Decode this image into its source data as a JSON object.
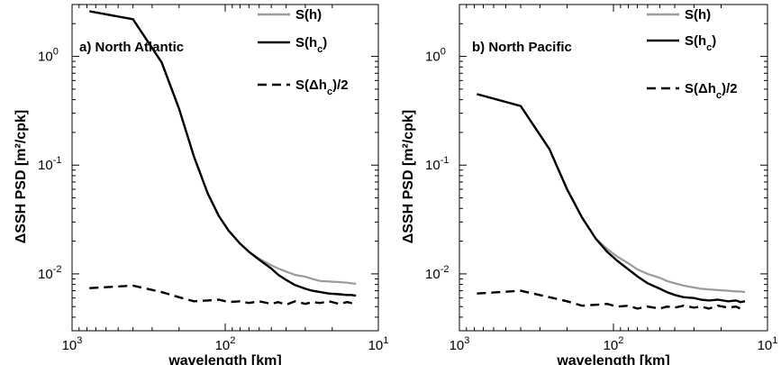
{
  "chart_data": [
    {
      "type": "line",
      "title": "a) North Atlantic",
      "xlabel": "wavelength [km]",
      "ylabel": "ΔSSH PSD [m²/cpk]",
      "x_scale": "log",
      "y_scale": "log",
      "x_reversed": true,
      "xlim": [
        1000,
        10
      ],
      "ylim": [
        0.003,
        3
      ],
      "x_ticks": [
        1000,
        100,
        10
      ],
      "x_tick_labels": [
        {
          "base": "10",
          "exp": "3"
        },
        {
          "base": "10",
          "exp": "2"
        },
        {
          "base": "10",
          "exp": "1"
        }
      ],
      "y_ticks": [
        0.01,
        0.1,
        1
      ],
      "y_tick_labels": [
        {
          "base": "10",
          "exp": "-2"
        },
        {
          "base": "10",
          "exp": "-1"
        },
        {
          "base": "10",
          "exp": "0"
        }
      ],
      "legend": {
        "placement": "top-right"
      },
      "series": [
        {
          "name": "S(h)",
          "name_parts": {
            "base": "S(h)",
            "sub": ""
          },
          "color": "#9a9a9a",
          "dash": "none",
          "x": [
            770,
            400,
            260,
            200,
            160,
            130,
            110,
            95,
            80,
            70,
            60,
            50,
            45,
            40,
            35,
            30,
            27,
            24,
            21,
            18,
            16,
            15,
            14
          ],
          "y": [
            2.6,
            2.2,
            0.88,
            0.33,
            0.12,
            0.055,
            0.034,
            0.025,
            0.019,
            0.016,
            0.0138,
            0.012,
            0.0112,
            0.0105,
            0.0098,
            0.0094,
            0.009,
            0.0086,
            0.0085,
            0.0084,
            0.0083,
            0.0082,
            0.0081
          ]
        },
        {
          "name": "S(h_c)",
          "name_parts": {
            "base": "S(h",
            "sub": "c",
            "tail": ")"
          },
          "color": "#000000",
          "dash": "none",
          "x": [
            770,
            400,
            260,
            200,
            160,
            130,
            110,
            95,
            80,
            70,
            60,
            50,
            45,
            40,
            35,
            30,
            27,
            24,
            21,
            18,
            16,
            15,
            14
          ],
          "y": [
            2.6,
            2.2,
            0.88,
            0.33,
            0.12,
            0.055,
            0.034,
            0.025,
            0.019,
            0.016,
            0.0135,
            0.0112,
            0.0098,
            0.0088,
            0.0079,
            0.0073,
            0.007,
            0.0068,
            0.0066,
            0.0065,
            0.0064,
            0.0064,
            0.0063
          ]
        },
        {
          "name": "S(Δh_c)/2",
          "name_parts": {
            "base": "S(Δh",
            "sub": "c",
            "tail": ")/2"
          },
          "color": "#000000",
          "dash": "10,6",
          "x": [
            770,
            400,
            260,
            200,
            160,
            130,
            110,
            95,
            80,
            70,
            60,
            50,
            45,
            40,
            35,
            30,
            27,
            24,
            21,
            18,
            16,
            15,
            14
          ],
          "y": [
            0.0074,
            0.0078,
            0.0068,
            0.0061,
            0.0056,
            0.0057,
            0.0058,
            0.0055,
            0.0056,
            0.0054,
            0.0056,
            0.0053,
            0.0055,
            0.0052,
            0.0056,
            0.0053,
            0.0055,
            0.0054,
            0.0056,
            0.0053,
            0.0055,
            0.0054,
            0.0055
          ]
        }
      ]
    },
    {
      "type": "line",
      "title": "b) North Pacific",
      "xlabel": "wavelength [km]",
      "ylabel": "ΔSSH PSD [m²/cpk]",
      "x_scale": "log",
      "y_scale": "log",
      "x_reversed": true,
      "xlim": [
        1000,
        10
      ],
      "ylim": [
        0.003,
        3
      ],
      "x_ticks": [
        1000,
        100,
        10
      ],
      "x_tick_labels": [
        {
          "base": "10",
          "exp": "3"
        },
        {
          "base": "10",
          "exp": "2"
        },
        {
          "base": "10",
          "exp": "1"
        }
      ],
      "y_ticks": [
        0.01,
        0.1,
        1
      ],
      "y_tick_labels": [
        {
          "base": "10",
          "exp": "-2"
        },
        {
          "base": "10",
          "exp": "-1"
        },
        {
          "base": "10",
          "exp": "0"
        }
      ],
      "legend": {
        "placement": "top-right"
      },
      "series": [
        {
          "name": "S(h)",
          "name_parts": {
            "base": "S(h)",
            "sub": ""
          },
          "color": "#9a9a9a",
          "dash": "none",
          "x": [
            770,
            400,
            260,
            200,
            160,
            130,
            110,
            95,
            80,
            70,
            60,
            50,
            45,
            40,
            35,
            30,
            27,
            24,
            21,
            18,
            16,
            15,
            14
          ],
          "y": [
            0.45,
            0.35,
            0.14,
            0.06,
            0.033,
            0.021,
            0.017,
            0.0145,
            0.0125,
            0.011,
            0.01,
            0.0092,
            0.0086,
            0.0082,
            0.0078,
            0.0075,
            0.0073,
            0.0072,
            0.0071,
            0.007,
            0.0069,
            0.0069,
            0.0068
          ]
        },
        {
          "name": "S(h_c)",
          "name_parts": {
            "base": "S(h",
            "sub": "c",
            "tail": ")"
          },
          "color": "#000000",
          "dash": "none",
          "x": [
            770,
            400,
            260,
            200,
            160,
            130,
            110,
            95,
            80,
            70,
            60,
            50,
            45,
            40,
            35,
            30,
            27,
            24,
            21,
            18,
            16,
            15,
            14
          ],
          "y": [
            0.45,
            0.35,
            0.14,
            0.06,
            0.033,
            0.021,
            0.016,
            0.0133,
            0.011,
            0.0095,
            0.0082,
            0.0073,
            0.0068,
            0.0064,
            0.0061,
            0.006,
            0.0058,
            0.0057,
            0.0058,
            0.0056,
            0.0057,
            0.0055,
            0.0056
          ]
        },
        {
          "name": "S(Δh_c)/2",
          "name_parts": {
            "base": "S(Δh",
            "sub": "c",
            "tail": ")/2"
          },
          "color": "#000000",
          "dash": "10,6",
          "x": [
            770,
            400,
            260,
            200,
            160,
            130,
            110,
            95,
            80,
            70,
            60,
            50,
            45,
            40,
            35,
            30,
            27,
            24,
            21,
            18,
            16,
            15,
            14
          ],
          "y": [
            0.0066,
            0.007,
            0.0061,
            0.0056,
            0.0051,
            0.0052,
            0.0053,
            0.005,
            0.0051,
            0.0048,
            0.005,
            0.0048,
            0.005,
            0.0049,
            0.0051,
            0.0049,
            0.005,
            0.0048,
            0.0051,
            0.0049,
            0.005,
            0.0048,
            0.0049
          ]
        }
      ]
    }
  ]
}
